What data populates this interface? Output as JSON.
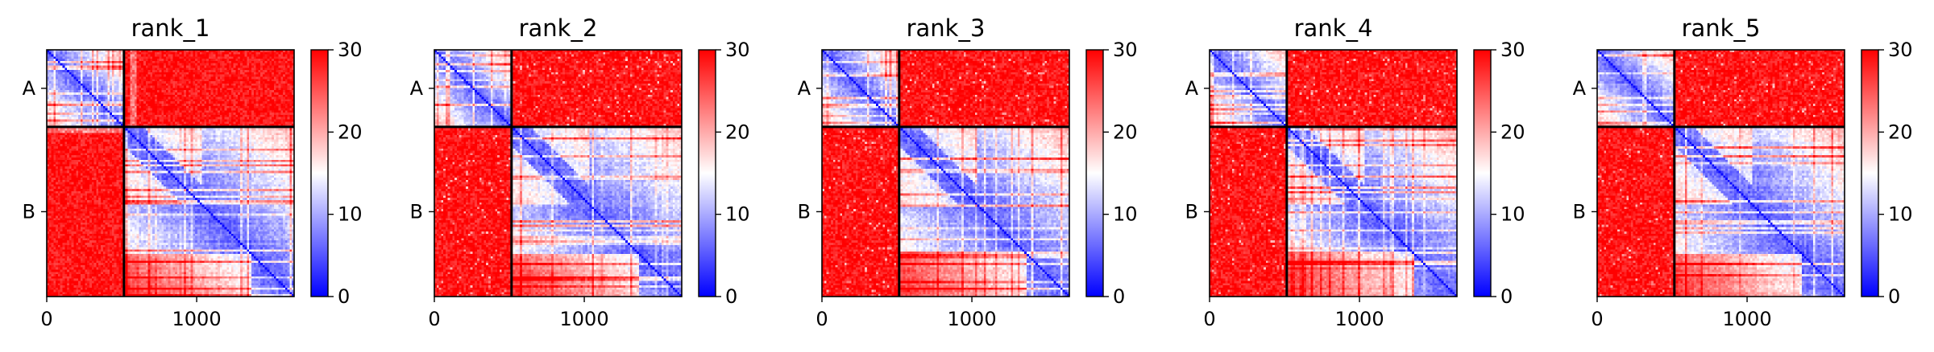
{
  "chart_data": [
    {
      "type": "heatmap",
      "title": "rank_1",
      "xticks": [
        "0",
        "1000"
      ],
      "xtick_values": [
        0,
        1000
      ],
      "yticks": [
        "A",
        "B"
      ],
      "chain_boundary": 515,
      "length": 1650,
      "chains": [
        "A",
        "B"
      ],
      "colorbar": {
        "ticks": [
          "0",
          "10",
          "20",
          "30"
        ],
        "range": [
          0,
          30
        ],
        "colors": [
          "#0000ff",
          "#ffffff",
          "#ff0000"
        ]
      },
      "variant": 1
    },
    {
      "type": "heatmap",
      "title": "rank_2",
      "xticks": [
        "0",
        "1000"
      ],
      "xtick_values": [
        0,
        1000
      ],
      "yticks": [
        "A",
        "B"
      ],
      "chain_boundary": 515,
      "length": 1650,
      "chains": [
        "A",
        "B"
      ],
      "colorbar": {
        "ticks": [
          "0",
          "10",
          "20",
          "30"
        ],
        "range": [
          0,
          30
        ],
        "colors": [
          "#0000ff",
          "#ffffff",
          "#ff0000"
        ]
      },
      "variant": 2
    },
    {
      "type": "heatmap",
      "title": "rank_3",
      "xticks": [
        "0",
        "1000"
      ],
      "xtick_values": [
        0,
        1000
      ],
      "yticks": [
        "A",
        "B"
      ],
      "chain_boundary": 515,
      "length": 1650,
      "chains": [
        "A",
        "B"
      ],
      "colorbar": {
        "ticks": [
          "0",
          "10",
          "20",
          "30"
        ],
        "range": [
          0,
          30
        ],
        "colors": [
          "#0000ff",
          "#ffffff",
          "#ff0000"
        ]
      },
      "variant": 3
    },
    {
      "type": "heatmap",
      "title": "rank_4",
      "xticks": [
        "0",
        "1000"
      ],
      "xtick_values": [
        0,
        1000
      ],
      "yticks": [
        "A",
        "B"
      ],
      "chain_boundary": 515,
      "length": 1650,
      "chains": [
        "A",
        "B"
      ],
      "colorbar": {
        "ticks": [
          "0",
          "10",
          "20",
          "30"
        ],
        "range": [
          0,
          30
        ],
        "colors": [
          "#0000ff",
          "#ffffff",
          "#ff0000"
        ]
      },
      "variant": 4
    },
    {
      "type": "heatmap",
      "title": "rank_5",
      "xticks": [
        "0",
        "1000"
      ],
      "xtick_values": [
        0,
        1000
      ],
      "yticks": [
        "A",
        "B"
      ],
      "chain_boundary": 515,
      "length": 1650,
      "chains": [
        "A",
        "B"
      ],
      "colorbar": {
        "ticks": [
          "0",
          "10",
          "20",
          "30"
        ],
        "range": [
          0,
          30
        ],
        "colors": [
          "#0000ff",
          "#ffffff",
          "#ff0000"
        ]
      },
      "variant": 5
    }
  ]
}
